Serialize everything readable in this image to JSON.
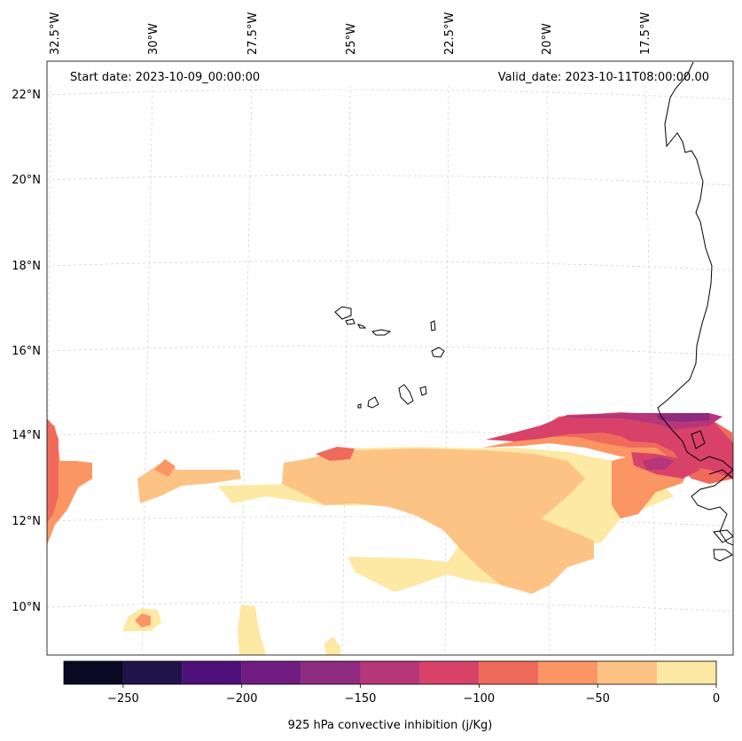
{
  "header": {
    "start_date": "Start date: 2023-10-09_00:00:00",
    "valid_date": "Valid_date: 2023-10-11T08:00:00.00"
  },
  "map": {
    "longitude_labels": [
      "32.5°W",
      "30°W",
      "27.5°W",
      "25°W",
      "22.5°W",
      "20°W",
      "17.5°W"
    ],
    "latitude_labels": [
      "22°N",
      "20°N",
      "18°N",
      "16°N",
      "14°N",
      "12°N",
      "10°N"
    ],
    "grid": "dashed",
    "colormap": "magma"
  },
  "colorbar": {
    "label": "925 hPa convective inhibition (j/Kg)",
    "tick_labels": [
      "−250",
      "−200",
      "−150",
      "−100",
      "−50",
      "0"
    ],
    "ticks": [
      -250,
      -200,
      -150,
      -100,
      -50,
      0
    ],
    "range": [
      -275,
      0
    ],
    "levels": [
      -275,
      -250,
      -225,
      -200,
      -175,
      -150,
      -125,
      -100,
      -75,
      -50,
      -25,
      0
    ],
    "colors": [
      "#0a0822",
      "#21124a",
      "#4e0f7a",
      "#701c81",
      "#8e2a7f",
      "#b53679",
      "#d84268",
      "#f06a5c",
      "#fb9664",
      "#fdc384",
      "#fde8a4"
    ]
  }
}
